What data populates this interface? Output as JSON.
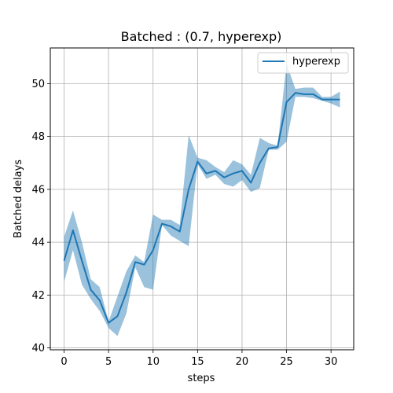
{
  "chart_data": {
    "type": "line",
    "title": "Batched : (0.7, hyperexp)",
    "xlabel": "steps",
    "ylabel": "Batched delays",
    "xlim": [
      -1.55,
      32.55
    ],
    "ylim": [
      39.93,
      51.35
    ],
    "xticks": [
      0,
      5,
      10,
      15,
      20,
      25,
      30
    ],
    "yticks": [
      40,
      42,
      44,
      46,
      48,
      50
    ],
    "grid": true,
    "legend_position": "upper right",
    "series": [
      {
        "name": "hyperexp",
        "color": "#1f77b4",
        "band_color": "#1f77b4",
        "x": [
          0,
          1,
          2,
          3,
          4,
          5,
          6,
          7,
          8,
          9,
          10,
          11,
          12,
          13,
          14,
          15,
          16,
          17,
          18,
          19,
          20,
          21,
          22,
          23,
          24,
          25,
          26,
          27,
          28,
          29,
          30,
          31
        ],
        "values": [
          43.3,
          44.45,
          43.3,
          42.2,
          41.8,
          40.95,
          41.2,
          42.1,
          43.25,
          43.15,
          43.7,
          44.7,
          44.6,
          44.4,
          46.0,
          47.05,
          46.6,
          46.7,
          46.45,
          46.6,
          46.7,
          46.25,
          47.0,
          47.55,
          47.6,
          49.3,
          49.65,
          49.6,
          49.6,
          49.4,
          49.4,
          49.4
        ],
        "lower": [
          42.5,
          43.7,
          42.4,
          41.85,
          41.4,
          40.75,
          40.45,
          41.3,
          43.05,
          42.3,
          42.2,
          44.65,
          44.25,
          44.05,
          43.85,
          46.95,
          46.4,
          46.55,
          46.2,
          46.1,
          46.35,
          45.9,
          46.05,
          47.5,
          47.5,
          47.8,
          49.5,
          49.5,
          49.45,
          49.35,
          49.25,
          49.1
        ],
        "upper": [
          44.2,
          45.2,
          44.0,
          42.6,
          42.3,
          41.0,
          41.95,
          42.9,
          43.5,
          43.25,
          45.05,
          44.85,
          44.85,
          44.65,
          48.05,
          47.2,
          47.1,
          46.85,
          46.65,
          47.1,
          46.95,
          46.55,
          47.95,
          47.75,
          47.65,
          50.75,
          49.8,
          49.85,
          49.85,
          49.5,
          49.5,
          49.7
        ]
      }
    ]
  }
}
